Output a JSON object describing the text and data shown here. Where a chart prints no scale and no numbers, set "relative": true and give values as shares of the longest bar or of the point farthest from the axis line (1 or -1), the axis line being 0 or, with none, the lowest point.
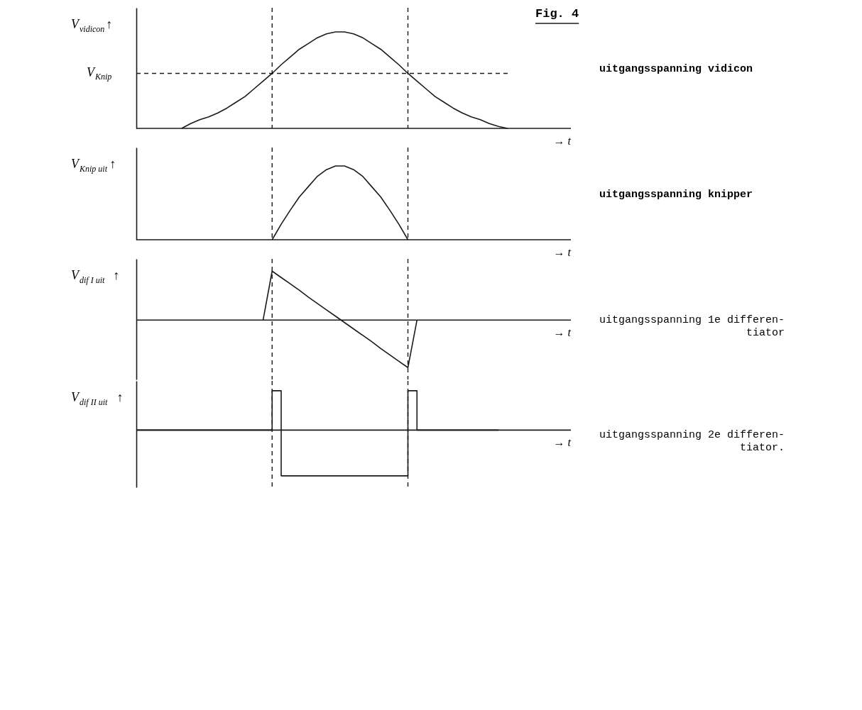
{
  "chart_data": [
    {
      "type": "line",
      "title": "Fig. 4",
      "ylabel": "V$_{vidicon}$↑",
      "xlabel": "→ t",
      "relative": true,
      "tick_labels": false,
      "grid": false,
      "marker": "none",
      "line_style": "solid",
      "categories": [
        null,
        null,
        null,
        null,
        null,
        null,
        null,
        null,
        null,
        null,
        null,
        null,
        null,
        null,
        null,
        null,
        null,
        null,
        null,
        null,
        null,
        null,
        null,
        null,
        null,
        null,
        null,
        null,
        null,
        null,
        null,
        null,
        null,
        null,
        null,
        null,
        null,
        null,
        null,
        null,
        null,
        null,
        null,
        null,
        null,
        null,
        null,
        null,
        null
      ],
      "series": [
        {
          "color": "#1a1a1a",
          "values": [
            null,
            null,
            null,
            null,
            null,
            0,
            0.05,
            0.09,
            0.12,
            0.16,
            0.21,
            0.27,
            0.33,
            0.41,
            0.49,
            0.57,
            0.66,
            0.74,
            0.82,
            0.88,
            0.94,
            0.98,
            1,
            1,
            0.98,
            0.94,
            0.88,
            0.82,
            0.74,
            0.66,
            0.57,
            0.49,
            0.41,
            0.33,
            0.27,
            0.21,
            0.16,
            0.12,
            0.09,
            0.05,
            0.02,
            0,
            null,
            null,
            null,
            null,
            null,
            null,
            null
          ]
        }
      ],
      "ref_lines": [
        {
          "axis": "y",
          "value": 0.57,
          "label": "V$_{Knip}$",
          "line_style": "dashed",
          "color": "#1a1a1a"
        }
      ],
      "annotations": [
        "uitgangsspanning vidicon"
      ]
    },
    {
      "type": "line",
      "ylabel": "V$_{Knip uit}$↑",
      "xlabel": "→ t",
      "relative": true,
      "tick_labels": false,
      "grid": false,
      "marker": "none",
      "line_style": "solid",
      "categories": [
        null,
        null,
        null,
        null,
        null,
        null,
        null,
        null,
        null,
        null,
        null,
        null,
        null,
        null,
        null,
        null,
        null,
        null,
        null,
        null,
        null,
        null,
        null,
        null,
        null,
        null,
        null,
        null,
        null,
        null,
        null,
        null,
        null,
        null,
        null,
        null,
        null,
        null,
        null,
        null,
        null,
        null,
        null,
        null,
        null,
        null,
        null,
        null,
        null
      ],
      "series": [
        {
          "color": "#1a1a1a",
          "values": [
            null,
            null,
            null,
            null,
            null,
            null,
            null,
            null,
            null,
            null,
            null,
            null,
            null,
            null,
            null,
            0,
            0.21,
            0.4,
            0.58,
            0.72,
            0.86,
            0.95,
            1,
            1,
            0.95,
            0.86,
            0.72,
            0.58,
            0.4,
            0.21,
            0,
            null,
            null,
            null,
            null,
            null,
            null,
            null,
            null,
            null,
            null,
            null,
            null,
            null,
            null,
            null,
            null,
            null,
            null
          ]
        }
      ],
      "annotations": [
        "uitgangsspanning knipper"
      ]
    },
    {
      "type": "line",
      "ylabel": "V$_{dif I uit}$↑",
      "xlabel": "→ t",
      "relative": true,
      "tick_labels": false,
      "grid": false,
      "marker": "none",
      "line_style": "solid",
      "categories": [
        null,
        null,
        null,
        null,
        null,
        null,
        null,
        null,
        null,
        null,
        null,
        null,
        null,
        null,
        null,
        null,
        null,
        null,
        null,
        null,
        null,
        null,
        null,
        null,
        null,
        null,
        null,
        null,
        null,
        null,
        null,
        null,
        null,
        null,
        null,
        null,
        null,
        null,
        null,
        null,
        null,
        null,
        null,
        null,
        null,
        null,
        null,
        null,
        null
      ],
      "series": [
        {
          "color": "#1a1a1a",
          "values": [
            null,
            null,
            null,
            null,
            null,
            null,
            null,
            null,
            null,
            null,
            null,
            null,
            null,
            null,
            0,
            1,
            0.87,
            0.74,
            0.61,
            0.47,
            0.34,
            0.21,
            0.08,
            -0.05,
            -0.18,
            -0.31,
            -0.44,
            -0.58,
            -0.71,
            -0.84,
            -0.97,
            0,
            null,
            null,
            null,
            null,
            null,
            null,
            null,
            null,
            null,
            null,
            null,
            null,
            null,
            null,
            null,
            null,
            null
          ]
        }
      ],
      "annotations": [
        "uitgangsspanning 1e differen-\ntiator"
      ]
    },
    {
      "type": "step",
      "ylabel": "V$_{dif II uit}$↑",
      "xlabel": "→ t",
      "relative": true,
      "tick_labels": false,
      "grid": false,
      "marker": "none",
      "line_style": "solid",
      "categories": [
        null,
        null,
        null,
        null,
        null,
        null,
        null,
        null,
        null,
        null,
        null,
        null,
        null,
        null,
        null,
        null,
        null,
        null,
        null,
        null,
        null,
        null,
        null,
        null,
        null,
        null,
        null,
        null,
        null,
        null,
        null,
        null,
        null,
        null,
        null,
        null,
        null,
        null,
        null,
        null,
        null,
        null,
        null,
        null,
        null,
        null,
        null,
        null,
        null
      ],
      "series": [
        {
          "color": "#1a1a1a",
          "values": [
            0,
            0,
            0,
            0,
            0,
            0,
            0,
            0,
            0,
            0,
            0,
            0,
            0,
            0,
            0,
            0.86,
            -1,
            -1,
            -1,
            -1,
            -1,
            -1,
            -1,
            -1,
            -1,
            -1,
            -1,
            -1,
            -1,
            -1,
            0.86,
            0,
            0,
            0,
            0,
            0,
            0,
            0,
            0,
            0,
            0,
            null,
            null,
            null,
            null,
            null,
            null,
            null,
            null
          ]
        }
      ],
      "annotations": [
        "uitgangsspanning 2e differen-\ntiator."
      ]
    }
  ]
}
